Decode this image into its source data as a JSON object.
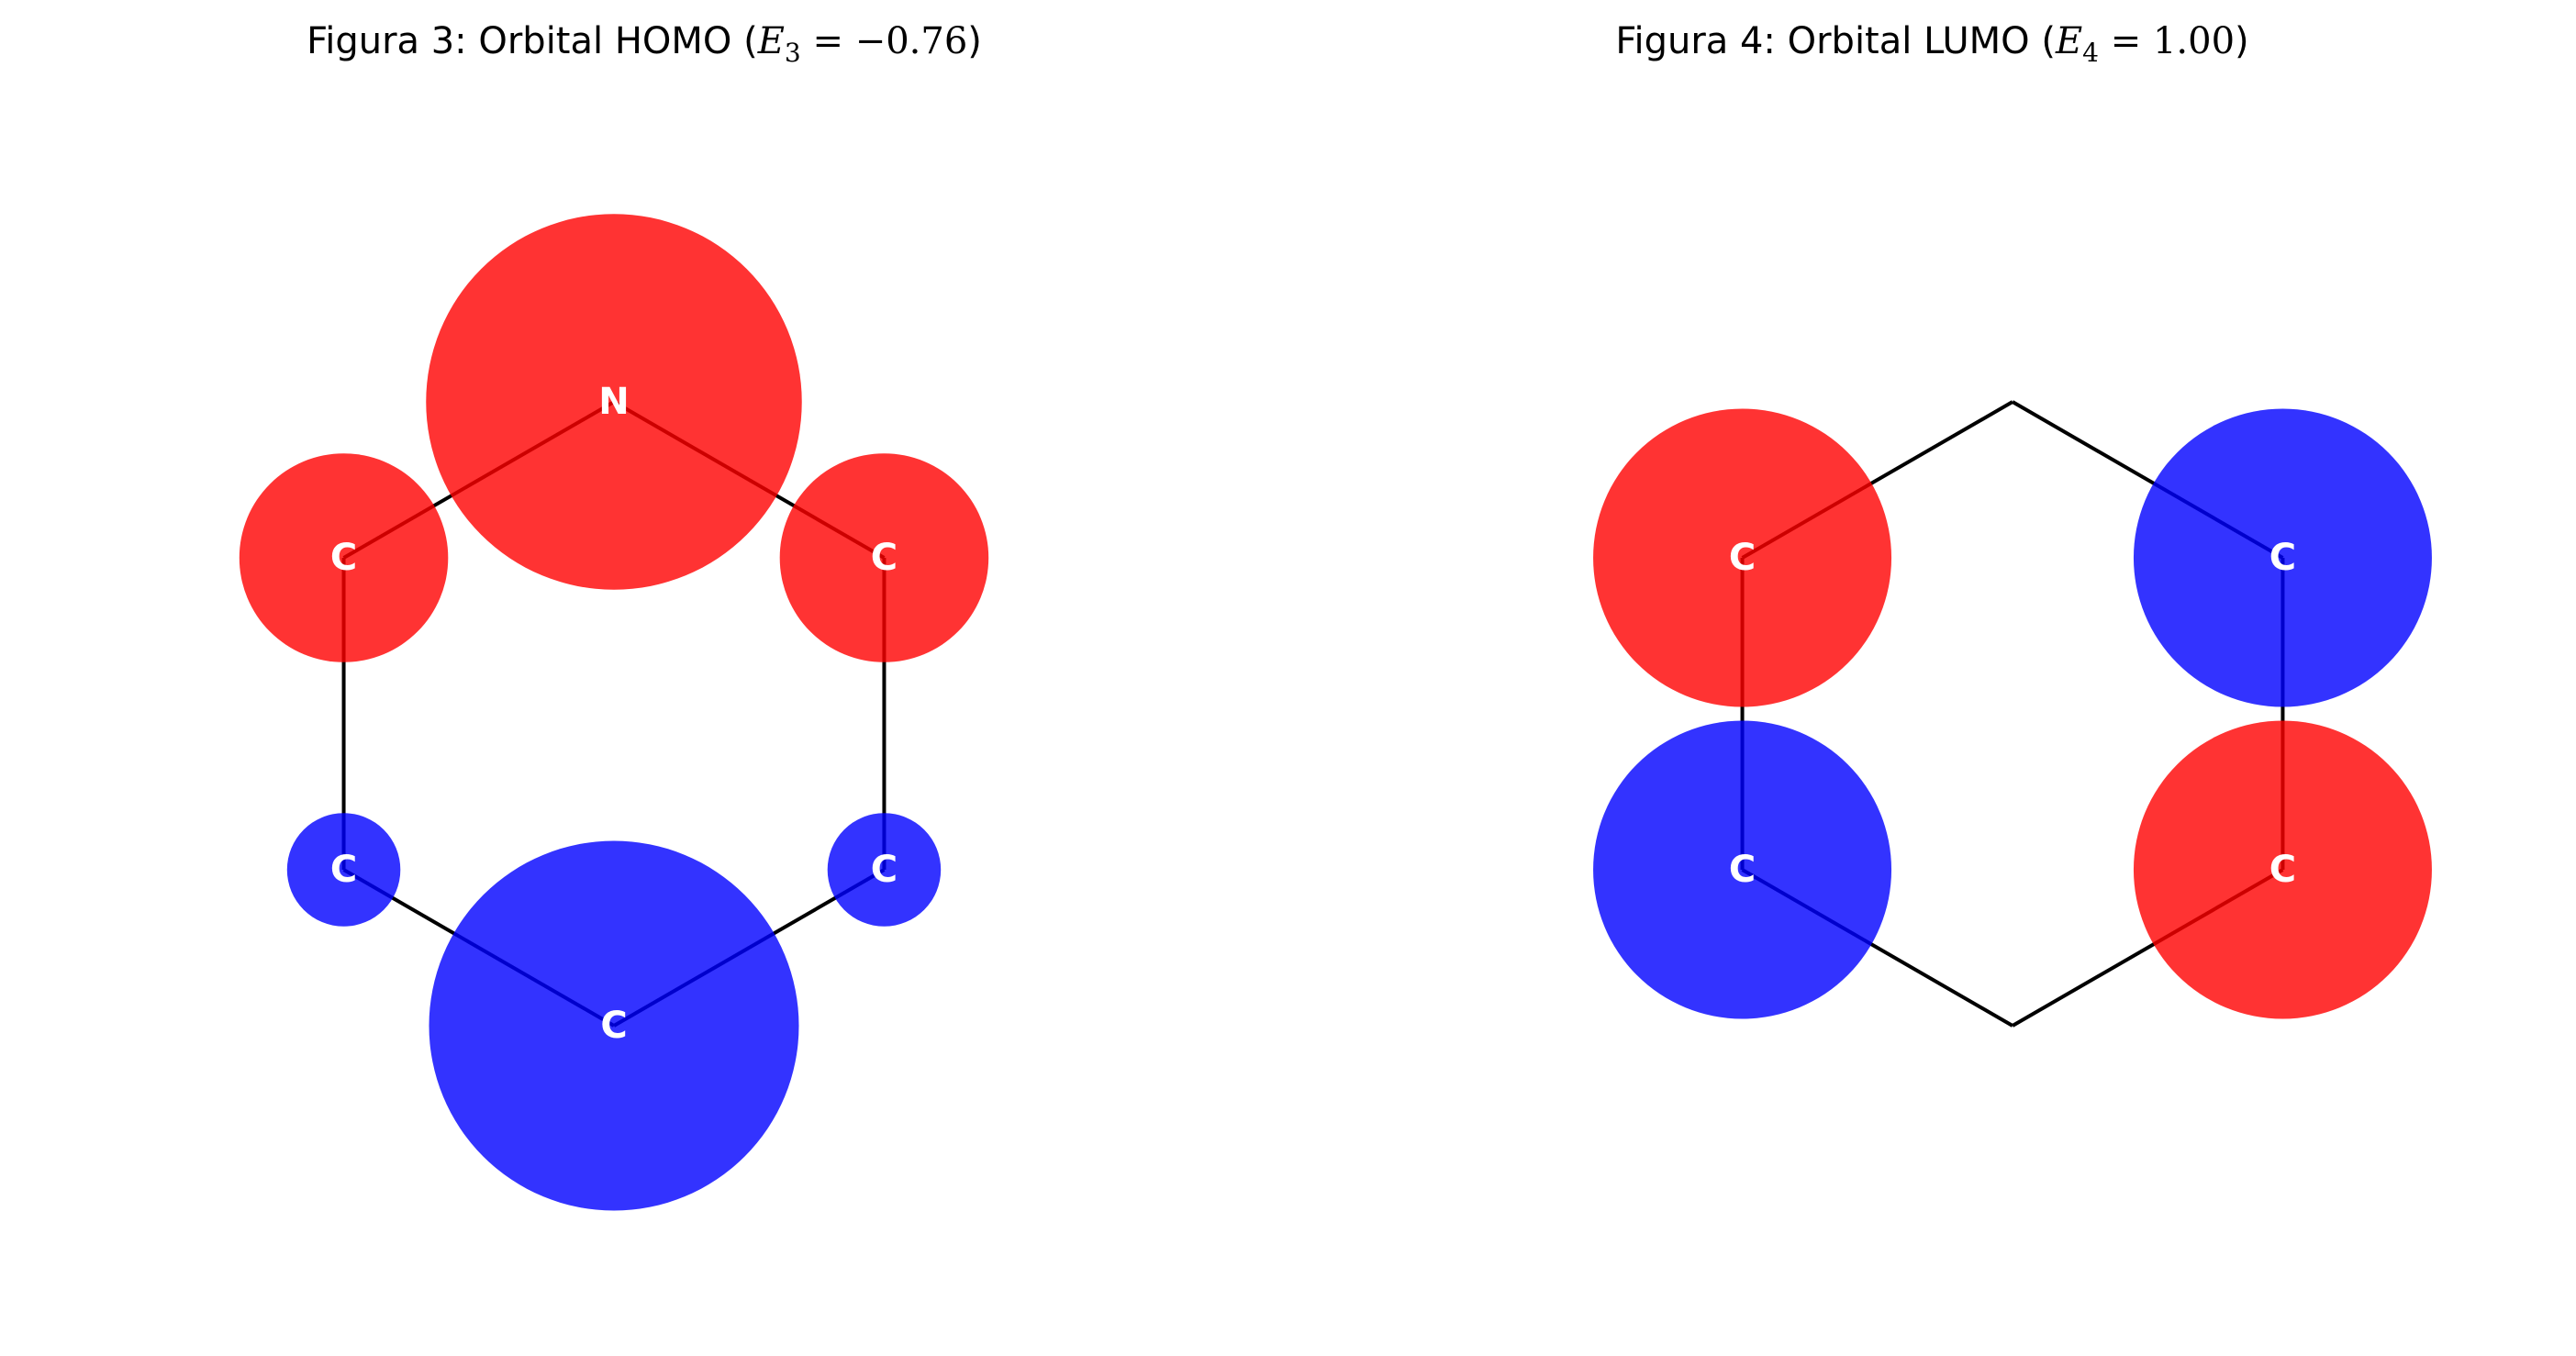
{
  "figures": [
    {
      "id": "homo",
      "title": {
        "prefix": "Figura 3: Orbital HOMO (",
        "energy_symbol": "E",
        "energy_index": "3",
        "equals": " = ",
        "energy_value": "−0.76",
        "suffix": ")"
      },
      "atoms": [
        {
          "label": "N",
          "coeff": 0.63,
          "phase": "positive"
        },
        {
          "label": "C",
          "coeff": 0.35,
          "phase": "positive"
        },
        {
          "label": "C",
          "coeff": 0.35,
          "phase": "positive"
        },
        {
          "label": "C",
          "coeff": -0.19,
          "phase": "negative"
        },
        {
          "label": "C",
          "coeff": -0.19,
          "phase": "negative"
        },
        {
          "label": "C",
          "coeff": -0.62,
          "phase": "negative"
        }
      ]
    },
    {
      "id": "lumo",
      "title": {
        "prefix": "Figura 4: Orbital LUMO (",
        "energy_symbol": "E",
        "energy_index": "4",
        "equals": " = ",
        "energy_value": "1.00",
        "suffix": ")"
      },
      "atoms": [
        {
          "label": "",
          "coeff": 0.0,
          "phase": "node"
        },
        {
          "label": "C",
          "coeff": 0.5,
          "phase": "positive"
        },
        {
          "label": "C",
          "coeff": -0.5,
          "phase": "negative"
        },
        {
          "label": "C",
          "coeff": -0.5,
          "phase": "negative"
        },
        {
          "label": "C",
          "coeff": 0.5,
          "phase": "positive"
        },
        {
          "label": "",
          "coeff": 0.0,
          "phase": "node"
        }
      ]
    }
  ],
  "colors": {
    "positive": "#ff0000",
    "negative": "#0000ff",
    "bond": "#000000",
    "label": "#ffffff"
  }
}
